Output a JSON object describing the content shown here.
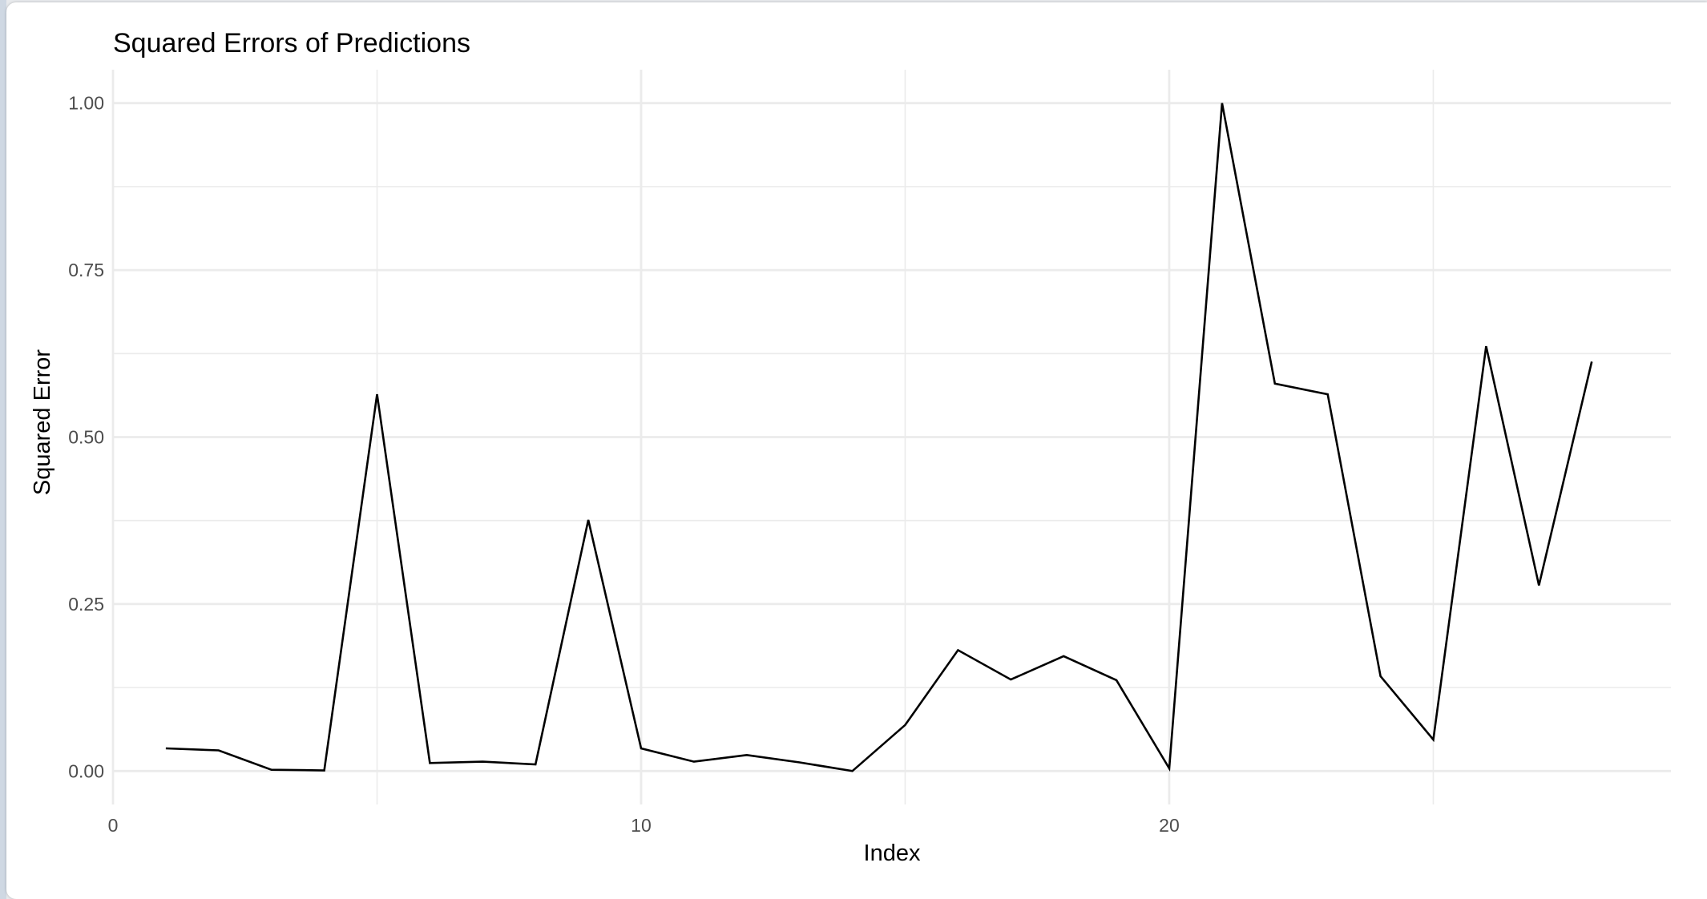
{
  "window": {
    "background": "#ffffff"
  },
  "chart_data": {
    "type": "line",
    "title": "Squared Errors of Predictions",
    "xlabel": "Index",
    "ylabel": "Squared Error",
    "xlim": [
      0,
      29.5
    ],
    "ylim": [
      -0.05,
      1.05
    ],
    "x_ticks": [
      0,
      10,
      20
    ],
    "x_tick_labels": [
      "0",
      "10",
      "20"
    ],
    "x_minor_ticks": [
      5,
      15,
      25
    ],
    "y_ticks": [
      0,
      0.25,
      0.5,
      0.75,
      1.0
    ],
    "y_tick_labels": [
      "0.00",
      "0.25",
      "0.50",
      "0.75",
      "1.00"
    ],
    "y_minor_ticks": [
      0.125,
      0.375,
      0.625,
      0.875
    ],
    "grid": true,
    "legend": "none",
    "line_color": "#000000",
    "grid_color": "#ebebeb",
    "x": [
      1,
      2,
      3,
      4,
      5,
      6,
      7,
      8,
      9,
      10,
      11,
      12,
      13,
      14,
      15,
      16,
      17,
      18,
      19,
      20,
      21,
      22,
      23,
      24,
      25,
      26,
      27,
      28
    ],
    "values": [
      0.034,
      0.031,
      0.002,
      0.001,
      0.564,
      0.012,
      0.014,
      0.01,
      0.376,
      0.034,
      0.014,
      0.024,
      0.013,
      0.0,
      0.069,
      0.181,
      0.137,
      0.172,
      0.136,
      0.004,
      1.0,
      0.58,
      0.564,
      0.142,
      0.047,
      0.636,
      0.278,
      0.613
    ]
  }
}
